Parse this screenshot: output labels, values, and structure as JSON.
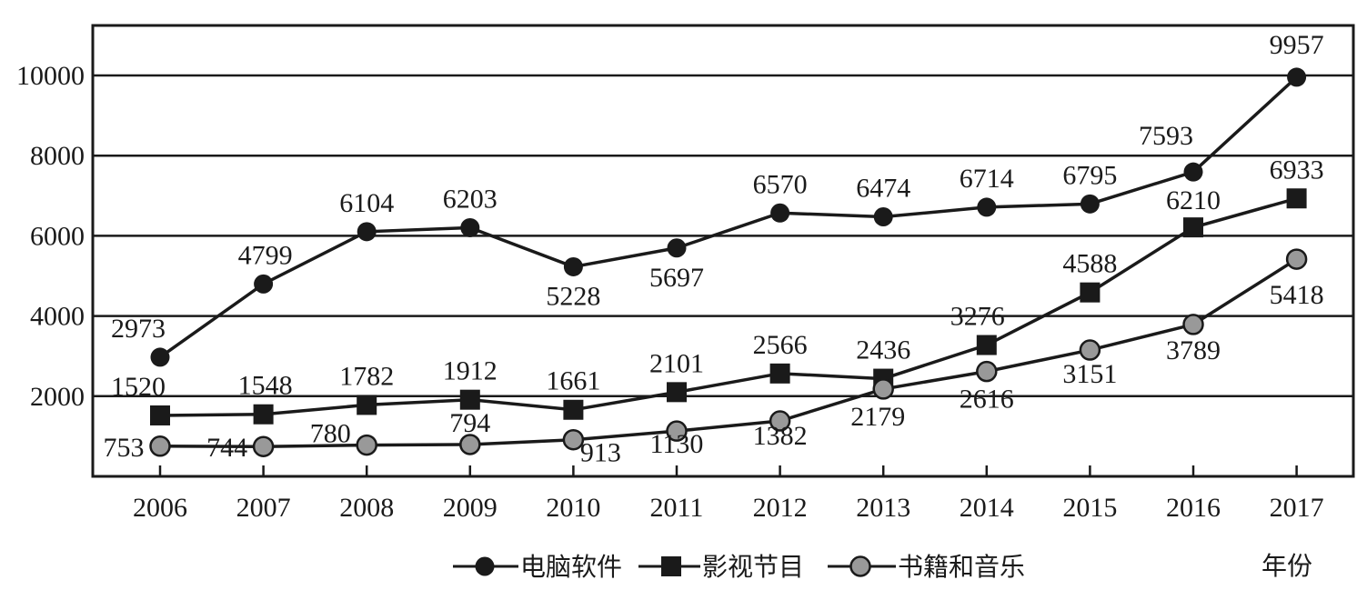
{
  "chart_data": {
    "type": "line",
    "categories": [
      "2006",
      "2007",
      "2008",
      "2009",
      "2010",
      "2011",
      "2012",
      "2013",
      "2014",
      "2015",
      "2016",
      "2017"
    ],
    "xlabel": "年份",
    "ylabel": "",
    "ylim": [
      0,
      11200
    ],
    "yticks": [
      2000,
      4000,
      6000,
      8000,
      10000
    ],
    "grid": "horizontal",
    "legend_position": "bottom",
    "series": [
      {
        "name": "电脑软件",
        "marker": "circle-black",
        "color": "#1a1a1a",
        "values": [
          2973,
          4799,
          6104,
          6203,
          5228,
          5697,
          6570,
          6474,
          6714,
          6795,
          7593,
          9957
        ]
      },
      {
        "name": "影视节目",
        "marker": "square-black",
        "color": "#1a1a1a",
        "values": [
          1520,
          1548,
          1782,
          1912,
          1661,
          2101,
          2566,
          2436,
          3276,
          4588,
          6210,
          6933
        ]
      },
      {
        "name": "书籍和音乐",
        "marker": "circle-gray",
        "color": "#999999",
        "values": [
          753,
          744,
          780,
          794,
          913,
          1130,
          1382,
          2179,
          2616,
          3151,
          3789,
          5418
        ]
      }
    ]
  }
}
